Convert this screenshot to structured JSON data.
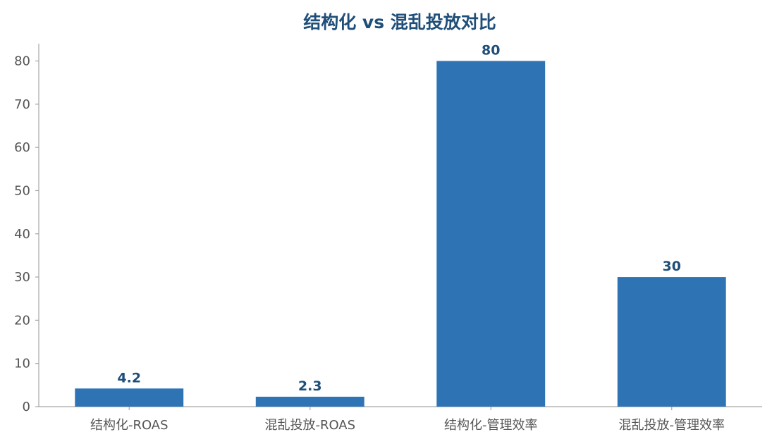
{
  "chart_data": {
    "type": "bar",
    "title": "结构化 vs 混乱投放对比",
    "categories": [
      "结构化-ROAS",
      "混乱投放-ROAS",
      "结构化-管理效率",
      "混乱投放-管理效率"
    ],
    "values": [
      4.2,
      2.3,
      80,
      30
    ],
    "data_labels": [
      "4.2",
      "2.3",
      "80",
      "30"
    ],
    "xlabel": "",
    "ylabel": "",
    "ylim": [
      0,
      84
    ],
    "yticks": [
      0,
      10,
      20,
      30,
      40,
      50,
      60,
      70,
      80
    ],
    "grid": false,
    "legend": "none"
  },
  "colors": {
    "bar": "#2e74b5",
    "title": "#1f4e79",
    "data_label": "#1f4e79",
    "axis": "#a6a6a6",
    "tick_text": "#555555"
  }
}
